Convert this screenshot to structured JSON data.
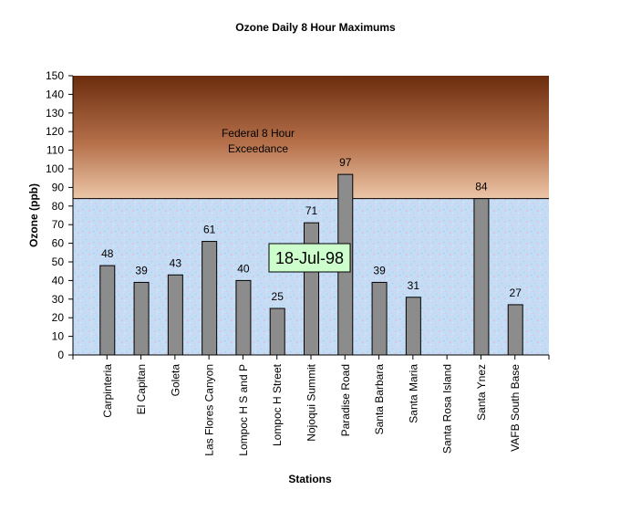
{
  "chart_data": {
    "type": "bar",
    "title": "Ozone Daily 8 Hour Maximums",
    "xlabel": "Stations",
    "ylabel": "Ozone (ppb)",
    "ylim": [
      0,
      150
    ],
    "ytick_step": 10,
    "categories": [
      "Carpinteria",
      "El Capitan",
      "Goleta",
      "Las Flores Canyon",
      "Lompoc H S and P",
      "Lompoc H Street",
      "Nojoqui Summit",
      "Paradise Road",
      "Santa Barbara",
      "Santa Maria",
      "Santa Rosa Island",
      "Santa Ynez",
      "VAFB South Base"
    ],
    "values": [
      48,
      39,
      43,
      61,
      40,
      25,
      71,
      97,
      39,
      31,
      null,
      84,
      27
    ],
    "data_labels": [
      "48",
      "39",
      "43",
      "61",
      "40",
      "25",
      "71",
      "97",
      "39",
      "31",
      "",
      "84",
      "27"
    ],
    "threshold": 84,
    "annotation": [
      "Federal 8 Hour",
      "Exceedance"
    ],
    "date_label": "18-Jul-98",
    "grid": false,
    "legend": "none",
    "colors": {
      "bar": "#8c8c8c",
      "exceedance_top": "#6b2d0e",
      "exceedance_bottom": "#e8c0a0",
      "background_blue": "#b8d4f0",
      "date_box": "#ccffcc"
    }
  }
}
